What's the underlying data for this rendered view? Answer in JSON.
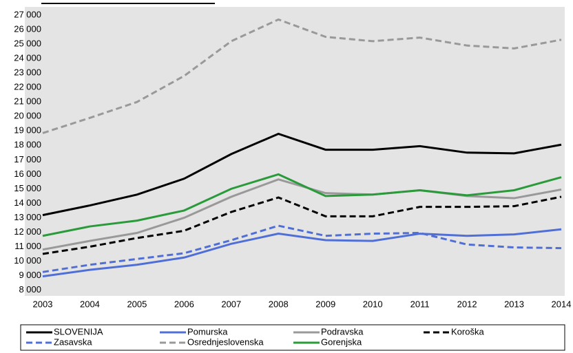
{
  "chart_data": {
    "type": "line",
    "x": [
      2003,
      2004,
      2005,
      2006,
      2007,
      2008,
      2009,
      2010,
      2011,
      2012,
      2013,
      2014
    ],
    "xlim": [
      2003,
      2014
    ],
    "xticks": [
      2003,
      2004,
      2005,
      2006,
      2007,
      2008,
      2009,
      2010,
      2011,
      2012,
      2013,
      2014
    ],
    "ylim": [
      7600,
      27500
    ],
    "yticks": [
      {
        "value": 8000,
        "label": "8 000"
      },
      {
        "value": 9000,
        "label": "9 000"
      },
      {
        "value": 10000,
        "label": "10 000"
      },
      {
        "value": 11000,
        "label": "11 000"
      },
      {
        "value": 12000,
        "label": "12 000"
      },
      {
        "value": 13000,
        "label": "13 000"
      },
      {
        "value": 14000,
        "label": "14 000"
      },
      {
        "value": 15000,
        "label": "15 000"
      },
      {
        "value": 16000,
        "label": "16 000"
      },
      {
        "value": 17000,
        "label": "17 000"
      },
      {
        "value": 18000,
        "label": "18 000"
      },
      {
        "value": 19000,
        "label": "19 000"
      },
      {
        "value": 20000,
        "label": "20 000"
      },
      {
        "value": 21000,
        "label": "21 000"
      },
      {
        "value": 22000,
        "label": "22 000"
      },
      {
        "value": 23000,
        "label": "23 000"
      },
      {
        "value": 24000,
        "label": "24 000"
      },
      {
        "value": 25000,
        "label": "25 000"
      },
      {
        "value": 26000,
        "label": "26 000"
      },
      {
        "value": 27000,
        "label": "27 000"
      }
    ],
    "grid": false,
    "legend": "bottom",
    "series": [
      {
        "name": "SLOVENIJA",
        "color": "#000000",
        "dashed": false,
        "values": [
          13180,
          13850,
          14600,
          15700,
          17400,
          18800,
          17700,
          17700,
          17950,
          17500,
          17450,
          18050
        ]
      },
      {
        "name": "Pomurska",
        "color": "#4f6fd6",
        "dashed": false,
        "values": [
          8950,
          9400,
          9750,
          10250,
          11200,
          11900,
          11450,
          11400,
          11900,
          11750,
          11850,
          12200
        ]
      },
      {
        "name": "Podravska",
        "color": "#999999",
        "dashed": false,
        "values": [
          10800,
          11400,
          11950,
          13000,
          14450,
          15650,
          14700,
          14600,
          14900,
          14500,
          14350,
          14950
        ]
      },
      {
        "name": "Koroška",
        "color": "#000000",
        "dashed": true,
        "values": [
          10500,
          11000,
          11600,
          12100,
          13400,
          14400,
          13100,
          13100,
          13750,
          13750,
          13800,
          14450
        ]
      },
      {
        "name": "Zasavska",
        "color": "#4f6fd6",
        "dashed": true,
        "values": [
          9250,
          9750,
          10150,
          10550,
          11450,
          12450,
          11750,
          11900,
          11950,
          11150,
          10950,
          10900
        ]
      },
      {
        "name": "Osrednjeslovenska",
        "color": "#999999",
        "dashed": true,
        "values": [
          18850,
          19900,
          21000,
          22800,
          25200,
          26700,
          25500,
          25200,
          25450,
          24900,
          24700,
          25300
        ]
      },
      {
        "name": "Gorenjska",
        "color": "#2a9a3a",
        "dashed": false,
        "values": [
          11750,
          12400,
          12800,
          13500,
          15000,
          16000,
          14500,
          14600,
          14900,
          14550,
          14900,
          15800
        ]
      }
    ]
  }
}
